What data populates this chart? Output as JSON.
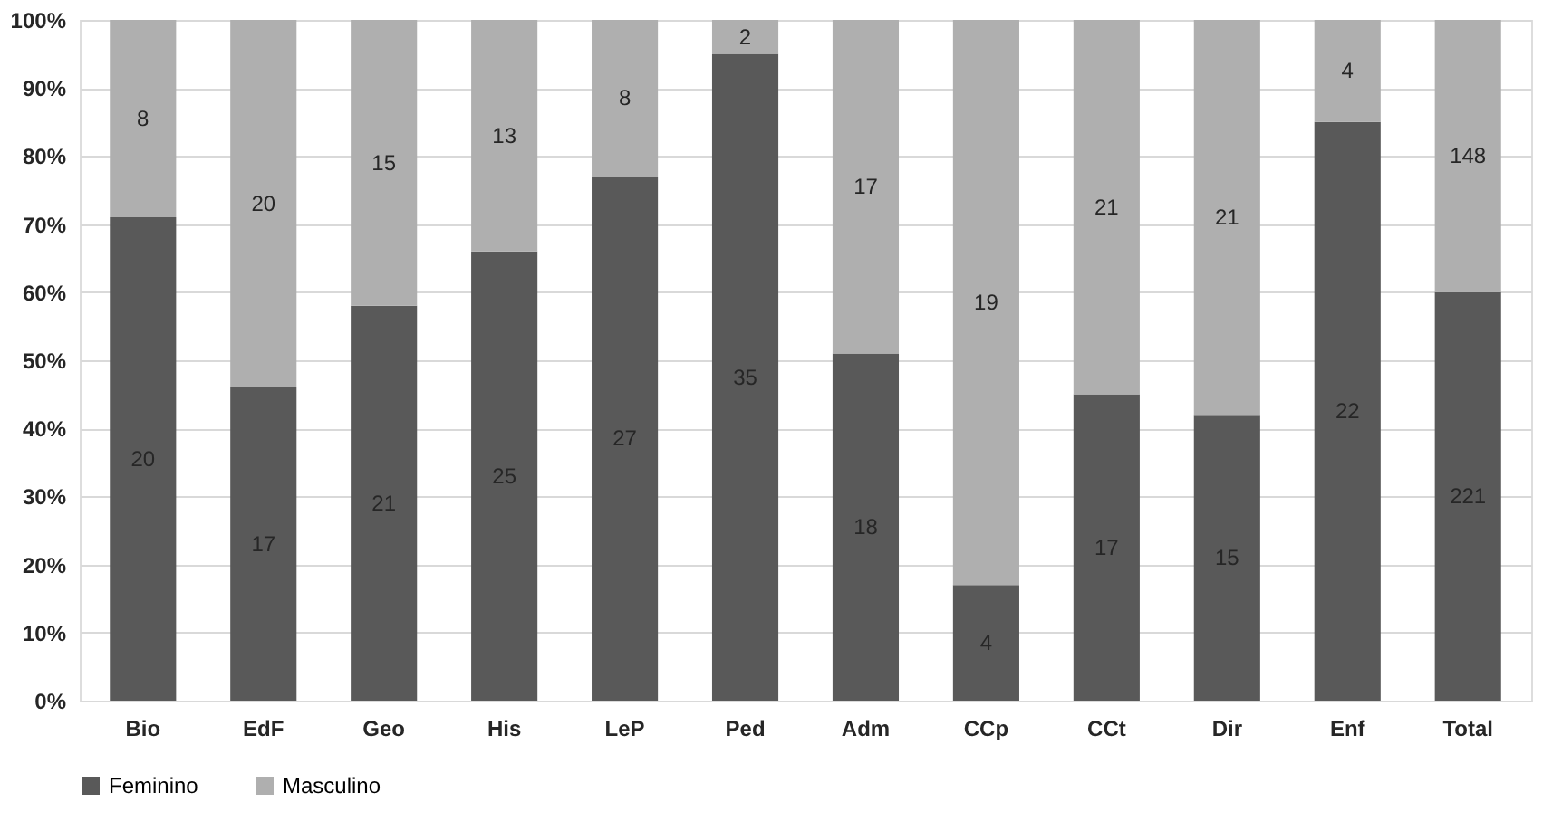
{
  "chart_data": {
    "type": "bar",
    "stacked": true,
    "categories": [
      "Bio",
      "EdF",
      "Geo",
      "His",
      "LeP",
      "Ped",
      "Adm",
      "CCp",
      "CCt",
      "Dir",
      "Enf",
      "Total"
    ],
    "series": [
      {
        "name": "Feminino",
        "color": "#595959",
        "values": [
          71,
          46,
          58,
          66,
          77,
          95,
          51,
          17,
          45,
          42,
          85,
          60
        ]
      },
      {
        "name": "Masculino",
        "color": "#afafaf",
        "values": [
          29,
          54,
          42,
          34,
          23,
          5,
          49,
          83,
          55,
          58,
          15,
          40
        ]
      }
    ],
    "annotations": [
      "20",
      "17",
      "21",
      "25",
      "27",
      "35",
      "18",
      "4",
      "17",
      "15",
      "22",
      "221",
      "8",
      "20",
      "15",
      "13",
      "8",
      "2",
      "17",
      "19",
      "21",
      "21",
      "4",
      "148"
    ],
    "ylim": [
      0,
      100
    ],
    "yticks": [
      {
        "value": 0,
        "label": "0%"
      },
      {
        "value": 10,
        "label": "10%"
      },
      {
        "value": 20,
        "label": "20%"
      },
      {
        "value": 30,
        "label": "30%"
      },
      {
        "value": 40,
        "label": "40%"
      },
      {
        "value": 50,
        "label": "50%"
      },
      {
        "value": 60,
        "label": "60%"
      },
      {
        "value": 70,
        "label": "70%"
      },
      {
        "value": 80,
        "label": "80%"
      },
      {
        "value": 90,
        "label": "90%"
      },
      {
        "value": 100,
        "label": "100%"
      }
    ],
    "grid": "y",
    "legend": "bottom"
  }
}
